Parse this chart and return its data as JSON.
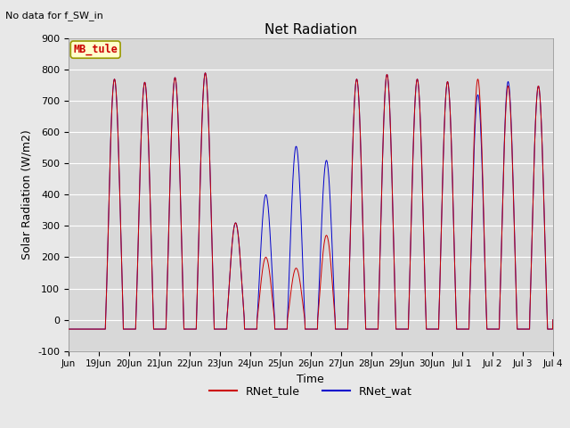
{
  "title": "Net Radiation",
  "subtitle": "No data for f_SW_in",
  "xlabel": "Time",
  "ylabel": "Solar Radiation (W/m2)",
  "ylim": [
    -100,
    900
  ],
  "yticks": [
    -100,
    0,
    100,
    200,
    300,
    400,
    500,
    600,
    700,
    800,
    900
  ],
  "legend_label1": "RNet_tule",
  "legend_label2": "RNet_wat",
  "line_color1": "#cc0000",
  "line_color2": "#0000cc",
  "annotation_text": "MB_tule",
  "annotation_color": "#cc0000",
  "annotation_bg": "#ffffcc",
  "fig_bg": "#e8e8e8",
  "plot_bg": "#d8d8d8",
  "n_days": 16,
  "tick_labels": [
    "Jun",
    "19Jun",
    "20Jun",
    "21Jun",
    "22Jun",
    "23Jun",
    "24Jun",
    "25Jun",
    "26Jun",
    "27Jun",
    "28Jun",
    "29Jun",
    "30Jun",
    "Jul 1",
    "Jul 2",
    "Jul 3",
    "Jul 4"
  ],
  "peak_tule": [
    0,
    770,
    760,
    775,
    790,
    310,
    200,
    165,
    270,
    770,
    785,
    770,
    762,
    770,
    748,
    748
  ],
  "peak_wat": [
    0,
    770,
    760,
    775,
    790,
    310,
    400,
    555,
    510,
    770,
    785,
    770,
    762,
    720,
    762,
    748
  ],
  "night_val": -30,
  "sunrise": 5.5,
  "sunset": 19.5,
  "pts_per_hour": 4
}
